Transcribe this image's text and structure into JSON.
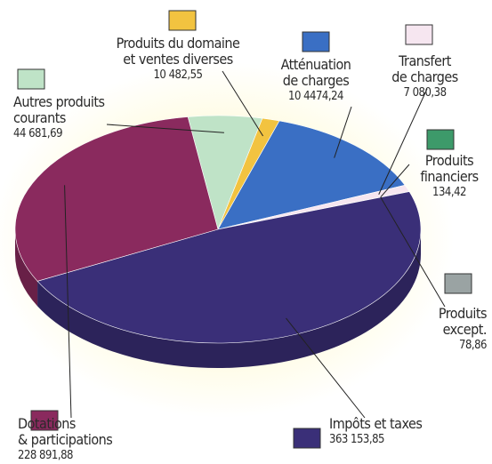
{
  "chart_data": {
    "type": "pie",
    "categories": [
      "Autres produits\ncourants",
      "Produits du domaine\net ventes diverses",
      "Atténuation\nde charges",
      "Transfert\nde charges",
      "Produits\nfinanciers",
      "Produits\nexcept.",
      "Impôts et taxes",
      "Dotations\n& participations"
    ],
    "values": [
      44681.69,
      10482.55,
      104474.24,
      7080.38,
      134.42,
      78.86,
      363153.85,
      228891.88
    ],
    "value_labels": [
      "44 681,69",
      "10 482,55",
      "10 4474,24",
      "7 080,38",
      "134,42",
      "78,86",
      "363 153,85",
      "228 891,88"
    ],
    "colors": [
      "#bfe3c7",
      "#f2c340",
      "#3a6fc4",
      "#f6e6f0",
      "#3d9a6a",
      "#9aa3a3",
      "#3a2f78",
      "#8a2a5e"
    ]
  }
}
